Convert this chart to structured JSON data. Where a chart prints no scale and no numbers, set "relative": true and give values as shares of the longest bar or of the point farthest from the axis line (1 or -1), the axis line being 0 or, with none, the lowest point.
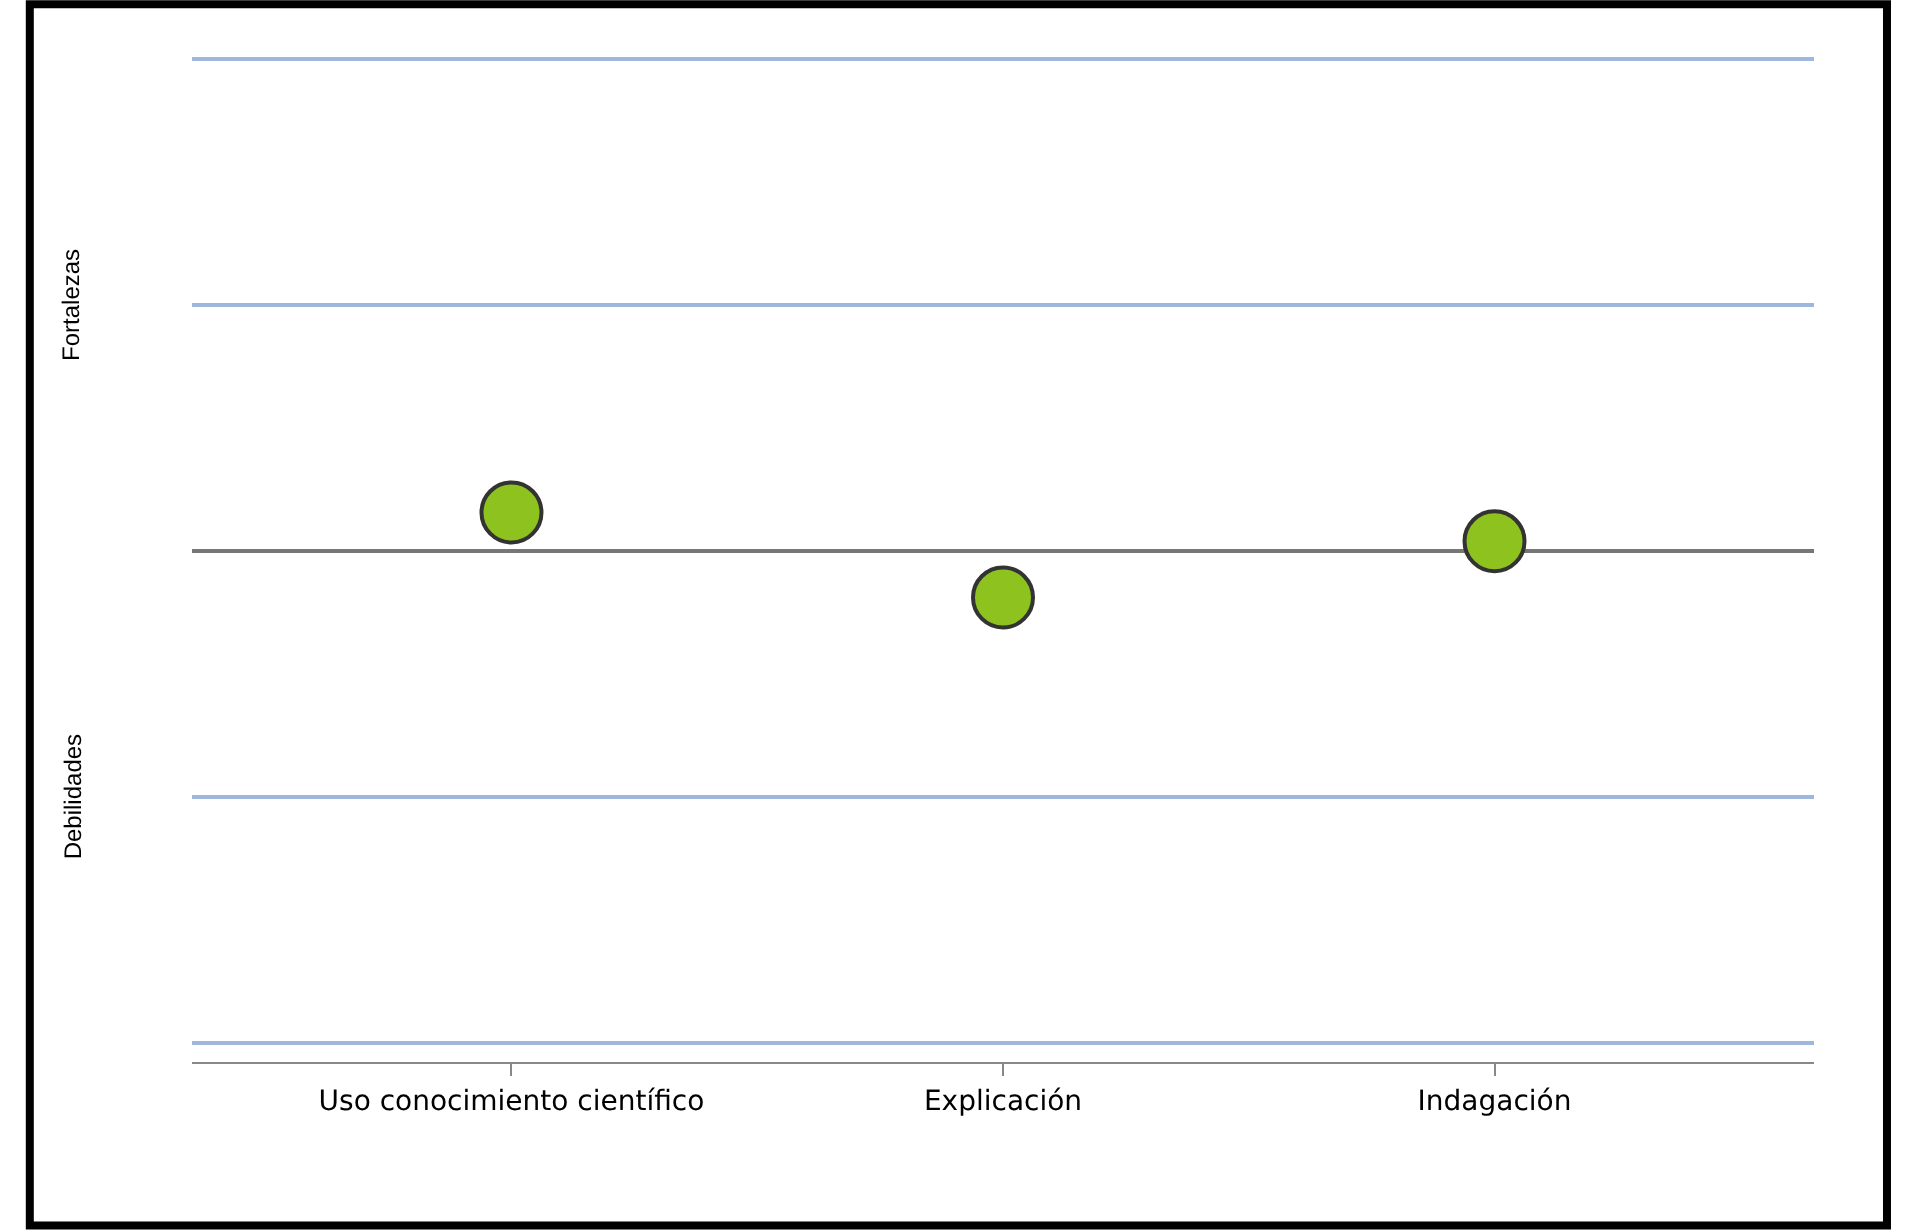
{
  "chart_data": {
    "type": "scatter",
    "relative": true,
    "categories": [
      "Uso conocimiento científico",
      "Explicación",
      "Indagación"
    ],
    "series": [
      {
        "color": "#8dc21f",
        "values": [
          0.83,
          -1,
          0.21
        ]
      }
    ],
    "marker": "circle",
    "annotations": [
      "Fortalezas",
      "Debilidades"
    ]
  }
}
